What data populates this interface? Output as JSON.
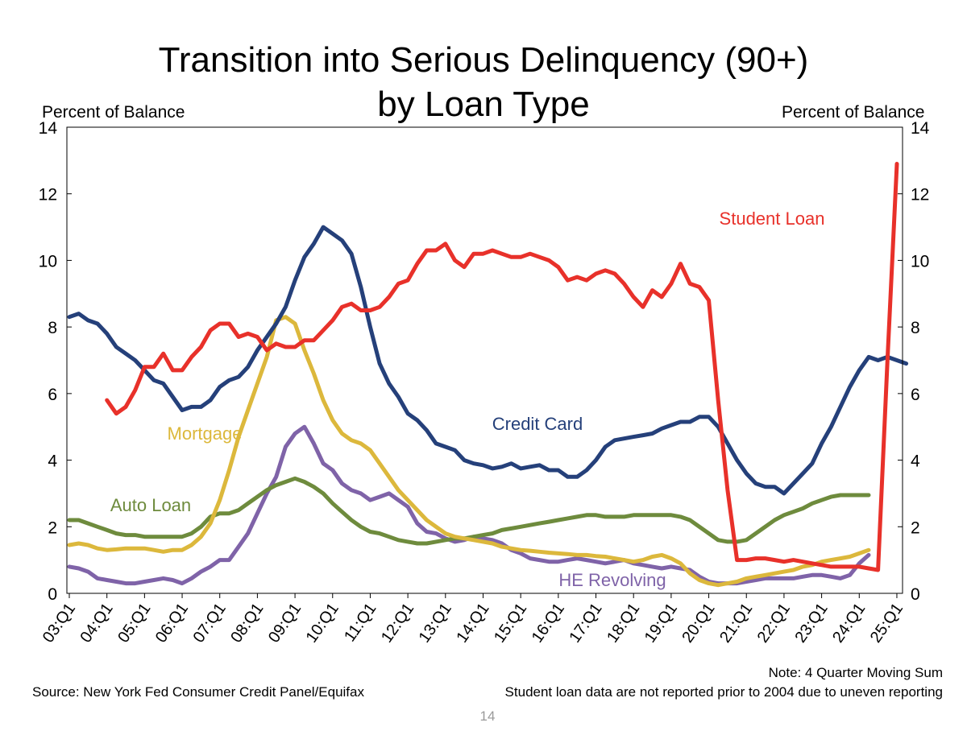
{
  "page": {
    "title_line1": "Transition into Serious Delinquency (90+)",
    "title_line2": "by Loan Type",
    "left_axis_label": "Percent of Balance",
    "right_axis_label": "Percent of Balance",
    "source": "Source: New York Fed Consumer Credit Panel/Equifax",
    "note_line1": "Note: 4 Quarter Moving Sum",
    "note_line2": "Student loan data are not reported prior to 2004 due to uneven reporting",
    "page_number": "14"
  },
  "chart_data": {
    "type": "line",
    "title": "Transition into Serious Delinquency (90+) by Loan Type",
    "ylabel": "Percent of Balance",
    "y2label": "Percent of Balance",
    "ylim": [
      0,
      14
    ],
    "yticks": [
      0,
      2,
      4,
      6,
      8,
      10,
      12,
      14
    ],
    "x_start": "03:Q1",
    "x_end": "25:Q2",
    "quarters_per_year": 4,
    "x_tick_labels": [
      "03:Q1",
      "04:Q1",
      "05:Q1",
      "06:Q1",
      "07:Q1",
      "08:Q1",
      "09:Q1",
      "10:Q1",
      "11:Q1",
      "12:Q1",
      "13:Q1",
      "14:Q1",
      "15:Q1",
      "16:Q1",
      "17:Q1",
      "18:Q1",
      "19:Q1",
      "20:Q1",
      "21:Q1",
      "22:Q1",
      "23:Q1",
      "24:Q1",
      "25:Q1"
    ],
    "grid": false,
    "series": [
      {
        "name": "Student Loan",
        "color": "#e8312a",
        "label_position": "upper-right",
        "start_quarter": "04:Q1",
        "values": [
          5.8,
          5.4,
          5.6,
          6.1,
          6.8,
          6.8,
          7.2,
          6.7,
          6.7,
          7.1,
          7.4,
          7.9,
          8.1,
          8.1,
          7.7,
          7.8,
          7.7,
          7.3,
          7.5,
          7.4,
          7.4,
          7.6,
          7.6,
          7.9,
          8.2,
          8.6,
          8.7,
          8.5,
          8.5,
          8.6,
          8.9,
          9.3,
          9.4,
          9.9,
          10.3,
          10.3,
          10.5,
          10.0,
          9.8,
          10.2,
          10.2,
          10.3,
          10.2,
          10.1,
          10.1,
          10.2,
          10.1,
          10.0,
          9.8,
          9.4,
          9.5,
          9.4,
          9.6,
          9.7,
          9.6,
          9.3,
          8.9,
          8.6,
          9.1,
          8.9,
          9.3,
          9.9,
          9.3,
          9.2,
          8.8,
          5.8,
          3.1,
          1.0,
          1.0,
          1.05,
          1.05,
          1.0,
          0.95,
          1.0,
          0.95,
          0.9,
          0.85,
          0.8,
          0.8,
          0.8,
          0.8,
          0.75,
          0.7,
          7.0,
          12.9
        ]
      },
      {
        "name": "Credit Card",
        "color": "#25407a",
        "label_position": "middle",
        "start_quarter": "03:Q1",
        "values": [
          8.3,
          8.4,
          8.2,
          8.1,
          7.8,
          7.4,
          7.2,
          7.0,
          6.7,
          6.4,
          6.3,
          5.9,
          5.5,
          5.6,
          5.6,
          5.8,
          6.2,
          6.4,
          6.5,
          6.8,
          7.3,
          7.7,
          8.1,
          8.6,
          9.4,
          10.1,
          10.5,
          11.0,
          10.8,
          10.6,
          10.2,
          9.2,
          8.0,
          6.9,
          6.3,
          5.9,
          5.4,
          5.2,
          4.9,
          4.5,
          4.4,
          4.3,
          4.0,
          3.9,
          3.85,
          3.75,
          3.8,
          3.9,
          3.75,
          3.8,
          3.85,
          3.7,
          3.7,
          3.5,
          3.5,
          3.7,
          4.0,
          4.4,
          4.6,
          4.65,
          4.7,
          4.75,
          4.8,
          4.95,
          5.05,
          5.15,
          5.15,
          5.3,
          5.3,
          5.0,
          4.5,
          4.0,
          3.6,
          3.3,
          3.2,
          3.2,
          3.0,
          3.3,
          3.6,
          3.9,
          4.5,
          5.0,
          5.6,
          6.2,
          6.7,
          7.1,
          7.0,
          7.1,
          7.0,
          6.9
        ]
      },
      {
        "name": "Mortgage",
        "color": "#dcb83c",
        "label_position": "middle-left",
        "start_quarter": "03:Q1",
        "values": [
          1.45,
          1.5,
          1.45,
          1.35,
          1.3,
          1.32,
          1.35,
          1.35,
          1.35,
          1.3,
          1.25,
          1.3,
          1.3,
          1.45,
          1.7,
          2.1,
          2.8,
          3.7,
          4.7,
          5.5,
          6.3,
          7.1,
          8.2,
          8.3,
          8.1,
          7.3,
          6.6,
          5.8,
          5.2,
          4.8,
          4.6,
          4.5,
          4.3,
          3.9,
          3.5,
          3.1,
          2.8,
          2.5,
          2.2,
          2.0,
          1.8,
          1.7,
          1.65,
          1.6,
          1.55,
          1.5,
          1.4,
          1.35,
          1.3,
          1.28,
          1.25,
          1.22,
          1.2,
          1.18,
          1.15,
          1.15,
          1.12,
          1.1,
          1.05,
          1.0,
          0.95,
          1.0,
          1.1,
          1.15,
          1.05,
          0.9,
          0.6,
          0.4,
          0.3,
          0.25,
          0.3,
          0.35,
          0.45,
          0.5,
          0.55,
          0.6,
          0.65,
          0.7,
          0.8,
          0.85,
          0.95,
          1.0,
          1.05,
          1.1,
          1.2,
          1.3
        ]
      },
      {
        "name": "Auto Loan",
        "color": "#6e8b3d",
        "label_position": "lower-left",
        "start_quarter": "03:Q1",
        "values": [
          2.2,
          2.2,
          2.1,
          2.0,
          1.9,
          1.8,
          1.75,
          1.75,
          1.7,
          1.7,
          1.7,
          1.7,
          1.7,
          1.8,
          2.0,
          2.3,
          2.4,
          2.4,
          2.5,
          2.7,
          2.9,
          3.1,
          3.25,
          3.35,
          3.45,
          3.35,
          3.2,
          3.0,
          2.7,
          2.45,
          2.2,
          2.0,
          1.85,
          1.8,
          1.7,
          1.6,
          1.55,
          1.5,
          1.5,
          1.55,
          1.6,
          1.65,
          1.65,
          1.7,
          1.75,
          1.8,
          1.9,
          1.95,
          2.0,
          2.05,
          2.1,
          2.15,
          2.2,
          2.25,
          2.3,
          2.35,
          2.35,
          2.3,
          2.3,
          2.3,
          2.35,
          2.35,
          2.35,
          2.35,
          2.35,
          2.3,
          2.2,
          2.0,
          1.8,
          1.6,
          1.55,
          1.55,
          1.6,
          1.8,
          2.0,
          2.2,
          2.35,
          2.45,
          2.55,
          2.7,
          2.8,
          2.9,
          2.95,
          2.95,
          2.95,
          2.95
        ]
      },
      {
        "name": "HE Revolving",
        "color": "#7f63a8",
        "label_position": "lower-right",
        "start_quarter": "03:Q1",
        "values": [
          0.8,
          0.75,
          0.65,
          0.45,
          0.4,
          0.35,
          0.3,
          0.3,
          0.35,
          0.4,
          0.45,
          0.4,
          0.3,
          0.45,
          0.65,
          0.8,
          1.0,
          1.0,
          1.4,
          1.8,
          2.4,
          3.0,
          3.5,
          4.4,
          4.8,
          5.0,
          4.5,
          3.9,
          3.7,
          3.3,
          3.1,
          3.0,
          2.8,
          2.9,
          3.0,
          2.8,
          2.6,
          2.1,
          1.85,
          1.8,
          1.65,
          1.55,
          1.6,
          1.7,
          1.65,
          1.6,
          1.5,
          1.3,
          1.2,
          1.05,
          1.0,
          0.95,
          0.95,
          1.0,
          1.05,
          1.0,
          0.95,
          0.9,
          0.95,
          1.0,
          0.9,
          0.85,
          0.8,
          0.75,
          0.8,
          0.75,
          0.7,
          0.5,
          0.35,
          0.3,
          0.3,
          0.3,
          0.35,
          0.4,
          0.45,
          0.45,
          0.45,
          0.45,
          0.5,
          0.55,
          0.55,
          0.5,
          0.45,
          0.55,
          0.9,
          1.15
        ]
      }
    ]
  }
}
